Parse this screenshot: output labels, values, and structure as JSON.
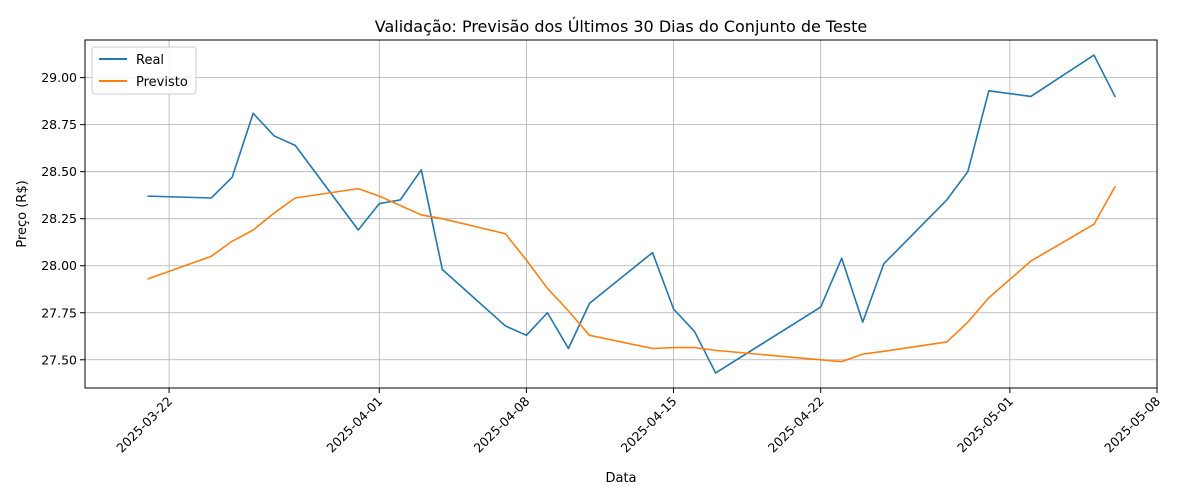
{
  "chart_data": {
    "type": "line",
    "title": "Validação: Previsão dos Últimos 30 Dias do Conjunto de Teste",
    "xlabel": "Data",
    "ylabel": "Preço (R$)",
    "xlim": [
      "2025-03-18",
      "2025-05-08"
    ],
    "ylim": [
      27.35,
      29.2
    ],
    "x_ticks": [
      "2025-03-22",
      "2025-04-01",
      "2025-04-08",
      "2025-04-15",
      "2025-04-22",
      "2025-05-01",
      "2025-05-08"
    ],
    "y_ticks": [
      "27.50",
      "27.75",
      "28.00",
      "28.25",
      "28.50",
      "28.75",
      "29.00"
    ],
    "grid": true,
    "legend_position": "upper-left",
    "colors": {
      "Real": "#1f77b4",
      "Previsto": "#ff7f0e"
    },
    "series": [
      {
        "name": "Real",
        "points": [
          [
            "2025-03-21",
            28.37
          ],
          [
            "2025-03-24",
            28.36
          ],
          [
            "2025-03-25",
            28.47
          ],
          [
            "2025-03-26",
            28.81
          ],
          [
            "2025-03-27",
            28.69
          ],
          [
            "2025-03-28",
            28.64
          ],
          [
            "2025-03-31",
            28.19
          ],
          [
            "2025-04-01",
            28.33
          ],
          [
            "2025-04-02",
            28.35
          ],
          [
            "2025-04-03",
            28.51
          ],
          [
            "2025-04-04",
            27.98
          ],
          [
            "2025-04-07",
            27.68
          ],
          [
            "2025-04-08",
            27.63
          ],
          [
            "2025-04-09",
            27.75
          ],
          [
            "2025-04-10",
            27.56
          ],
          [
            "2025-04-11",
            27.8
          ],
          [
            "2025-04-14",
            28.07
          ],
          [
            "2025-04-15",
            27.77
          ],
          [
            "2025-04-16",
            27.65
          ],
          [
            "2025-04-17",
            27.43
          ],
          [
            "2025-04-22",
            27.78
          ],
          [
            "2025-04-23",
            28.04
          ],
          [
            "2025-04-24",
            27.7
          ],
          [
            "2025-04-25",
            28.01
          ],
          [
            "2025-04-28",
            28.35
          ],
          [
            "2025-04-29",
            28.5
          ],
          [
            "2025-04-30",
            28.93
          ],
          [
            "2025-05-02",
            28.9
          ],
          [
            "2025-05-05",
            29.12
          ],
          [
            "2025-05-06",
            28.9
          ]
        ]
      },
      {
        "name": "Previsto",
        "points": [
          [
            "2025-03-21",
            27.93
          ],
          [
            "2025-03-24",
            28.05
          ],
          [
            "2025-03-25",
            28.13
          ],
          [
            "2025-03-26",
            28.19
          ],
          [
            "2025-03-27",
            28.28
          ],
          [
            "2025-03-28",
            28.36
          ],
          [
            "2025-03-31",
            28.41
          ],
          [
            "2025-04-01",
            28.37
          ],
          [
            "2025-04-02",
            28.32
          ],
          [
            "2025-04-03",
            28.27
          ],
          [
            "2025-04-04",
            28.25
          ],
          [
            "2025-04-07",
            28.17
          ],
          [
            "2025-04-08",
            28.03
          ],
          [
            "2025-04-09",
            27.88
          ],
          [
            "2025-04-10",
            27.76
          ],
          [
            "2025-04-11",
            27.63
          ],
          [
            "2025-04-14",
            27.56
          ],
          [
            "2025-04-15",
            27.565
          ],
          [
            "2025-04-16",
            27.565
          ],
          [
            "2025-04-17",
            27.55
          ],
          [
            "2025-04-22",
            27.5
          ],
          [
            "2025-04-23",
            27.49
          ],
          [
            "2025-04-24",
            27.53
          ],
          [
            "2025-04-25",
            27.545
          ],
          [
            "2025-04-28",
            27.595
          ],
          [
            "2025-04-29",
            27.7
          ],
          [
            "2025-04-30",
            27.83
          ],
          [
            "2025-05-02",
            28.025
          ],
          [
            "2025-05-05",
            28.22
          ],
          [
            "2025-05-06",
            28.42
          ]
        ]
      }
    ]
  }
}
